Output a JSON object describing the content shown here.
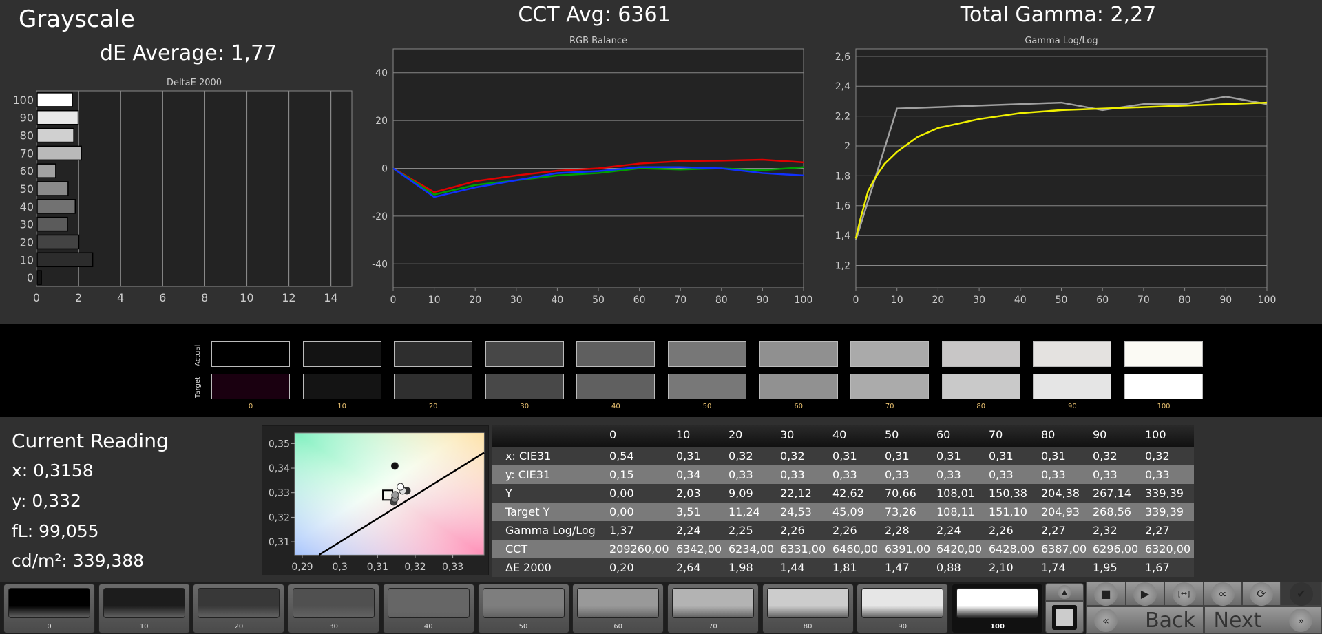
{
  "header": {
    "title": "Grayscale",
    "de_average": "dE Average: 1,77",
    "cct_avg": "CCT Avg: 6361",
    "total_gamma": "Total Gamma: 2,27"
  },
  "chart_data": [
    {
      "type": "bar",
      "orientation": "horizontal",
      "title": "DeltaE 2000",
      "categories": [
        "0",
        "10",
        "20",
        "30",
        "40",
        "50",
        "60",
        "70",
        "80",
        "90",
        "100"
      ],
      "values": [
        0.2,
        2.64,
        1.98,
        1.44,
        1.81,
        1.47,
        0.88,
        2.1,
        1.74,
        1.95,
        1.67
      ],
      "xlim": [
        0,
        15
      ],
      "xticks": [
        "0",
        "2",
        "4",
        "6",
        "8",
        "10",
        "12",
        "14"
      ],
      "grid": true
    },
    {
      "type": "line",
      "title": "RGB Balance",
      "x": [
        0,
        10,
        20,
        30,
        40,
        50,
        60,
        70,
        80,
        90,
        100
      ],
      "xlim": [
        0,
        100
      ],
      "ylim": [
        -50,
        50
      ],
      "xticks": [
        "0",
        "10",
        "20",
        "30",
        "40",
        "50",
        "60",
        "70",
        "80",
        "90",
        "100"
      ],
      "yticks": [
        "-40",
        "-20",
        "0",
        "20",
        "40"
      ],
      "grid": true,
      "series": [
        {
          "color": "#e00000",
          "values": [
            0,
            -10,
            -5.4,
            -3,
            -1,
            0,
            2,
            3,
            3.2,
            3.6,
            2.5
          ]
        },
        {
          "color": "#00a000",
          "values": [
            0,
            -11,
            -7,
            -5,
            -3,
            -2,
            0,
            -0.5,
            0,
            -0.8,
            0.5
          ]
        },
        {
          "color": "#1030ff",
          "values": [
            0,
            -12,
            -8,
            -5,
            -2,
            -1.2,
            0.5,
            0.5,
            0,
            -2,
            -3
          ]
        }
      ]
    },
    {
      "type": "line",
      "title": "Gamma Log/Log",
      "xlim": [
        0,
        100
      ],
      "ylim": [
        1.05,
        2.65
      ],
      "xticks": [
        "0",
        "10",
        "20",
        "30",
        "40",
        "50",
        "60",
        "70",
        "80",
        "90",
        "100"
      ],
      "yticks": [
        "1,2",
        "1,4",
        "1,6",
        "1,8",
        "2",
        "2,2",
        "2,4",
        "2,6"
      ],
      "grid": true,
      "series": [
        {
          "color": "#a0a0a0",
          "x": [
            0,
            10,
            20,
            30,
            40,
            50,
            60,
            70,
            80,
            90,
            100
          ],
          "values": [
            1.37,
            2.25,
            2.26,
            2.27,
            2.28,
            2.29,
            2.24,
            2.28,
            2.28,
            2.33,
            2.28
          ]
        },
        {
          "color": "#f0f000",
          "x": [
            0,
            1,
            2,
            3,
            5,
            7,
            10,
            15,
            20,
            30,
            40,
            50,
            60,
            70,
            80,
            90,
            100
          ],
          "values": [
            1.38,
            1.5,
            1.6,
            1.7,
            1.8,
            1.88,
            1.96,
            2.06,
            2.12,
            2.18,
            2.22,
            2.24,
            2.25,
            2.26,
            2.27,
            2.28,
            2.29
          ]
        }
      ]
    },
    {
      "type": "scatter",
      "title": "",
      "xlim": [
        0.288,
        0.3383
      ],
      "ylim": [
        0.3047,
        0.3543
      ],
      "xticks": [
        "0,29",
        "0,3",
        "0,31",
        "0,32",
        "0,33"
      ],
      "yticks": [
        "0,31",
        "0,32",
        "0,33",
        "0,34",
        "0,35"
      ],
      "target": {
        "x": 0.3127,
        "y": 0.329
      },
      "points": [
        {
          "x": 0.3146,
          "y": 0.3409,
          "color": "#111"
        },
        {
          "x": 0.3143,
          "y": 0.3263,
          "color": "#444"
        },
        {
          "x": 0.3146,
          "y": 0.3276,
          "color": "#888"
        },
        {
          "x": 0.3147,
          "y": 0.3291,
          "color": "#999"
        },
        {
          "x": 0.3178,
          "y": 0.3308,
          "color": "#333"
        },
        {
          "x": 0.3167,
          "y": 0.3308,
          "color": "#ddd"
        },
        {
          "x": 0.3161,
          "y": 0.3324,
          "color": "#fff"
        }
      ],
      "locus": [
        {
          "x": 0.2945,
          "y": 0.3047
        },
        {
          "x": 0.3383,
          "y": 0.3463
        }
      ]
    }
  ],
  "swatches": {
    "actual_label": "Actual",
    "target_label": "Target",
    "levels": [
      "0",
      "10",
      "20",
      "30",
      "40",
      "50",
      "60",
      "70",
      "80",
      "90",
      "100"
    ],
    "actual": [
      "#000000",
      "#131313",
      "#2e2e2e",
      "#474747",
      "#5f5f5f",
      "#777777",
      "#909090",
      "#aaaaaa",
      "#c8c6c6",
      "#e4e2e0",
      "#fbfaf4"
    ],
    "target": [
      "#1a0010",
      "#141414",
      "#2f2f2f",
      "#484848",
      "#606060",
      "#787878",
      "#919191",
      "#ababab",
      "#c9c9c9",
      "#e5e5e5",
      "#ffffff"
    ]
  },
  "reading": {
    "title": "Current Reading",
    "x": "x: 0,3158",
    "y": "y: 0,332",
    "fl": "fL: 99,055",
    "cdm2": "cd/m²: 339,388"
  },
  "table": {
    "headers": [
      "",
      "0",
      "10",
      "20",
      "30",
      "40",
      "50",
      "60",
      "70",
      "80",
      "90",
      "100"
    ],
    "rows": [
      [
        "x: CIE31",
        "0,54",
        "0,31",
        "0,32",
        "0,32",
        "0,31",
        "0,31",
        "0,31",
        "0,31",
        "0,31",
        "0,32",
        "0,32"
      ],
      [
        "y: CIE31",
        "0,15",
        "0,34",
        "0,33",
        "0,33",
        "0,33",
        "0,33",
        "0,33",
        "0,33",
        "0,33",
        "0,33",
        "0,33"
      ],
      [
        "Y",
        "0,00",
        "2,03",
        "9,09",
        "22,12",
        "42,62",
        "70,66",
        "108,01",
        "150,38",
        "204,38",
        "267,14",
        "339,39"
      ],
      [
        "Target Y",
        "0,00",
        "3,51",
        "11,24",
        "24,53",
        "45,09",
        "73,26",
        "108,11",
        "151,10",
        "204,93",
        "268,56",
        "339,39"
      ],
      [
        "Gamma Log/Log",
        "1,37",
        "2,24",
        "2,25",
        "2,26",
        "2,26",
        "2,28",
        "2,24",
        "2,26",
        "2,27",
        "2,32",
        "2,27"
      ],
      [
        "CCT",
        "209260,00",
        "6342,00",
        "6234,00",
        "6331,00",
        "6460,00",
        "6391,00",
        "6420,00",
        "6428,00",
        "6387,00",
        "6296,00",
        "6320,00"
      ],
      [
        "ΔE 2000",
        "0,20",
        "2,64",
        "1,98",
        "1,44",
        "1,81",
        "1,47",
        "0,88",
        "2,10",
        "1,74",
        "1,95",
        "1,67"
      ]
    ]
  },
  "patches": {
    "labels": [
      "0",
      "10",
      "20",
      "30",
      "40",
      "50",
      "60",
      "70",
      "80",
      "90",
      "100"
    ],
    "colors": [
      "#000000",
      "#1c1c1c",
      "#383838",
      "#505050",
      "#666666",
      "#7e7e7e",
      "#999999",
      "#b3b3b3",
      "#cccccc",
      "#e6e6e6",
      "#ffffff"
    ],
    "selected": "100"
  },
  "controls": {
    "up_icon": "▲",
    "stop_icon": "■",
    "play_icon": "▶",
    "range_icon": "[↔]",
    "loop_icon": "∞",
    "refresh_icon": "⟳",
    "check_icon": "✔",
    "back_label": "Back",
    "next_label": "Next",
    "back_icon": "«",
    "next_icon": "»"
  }
}
